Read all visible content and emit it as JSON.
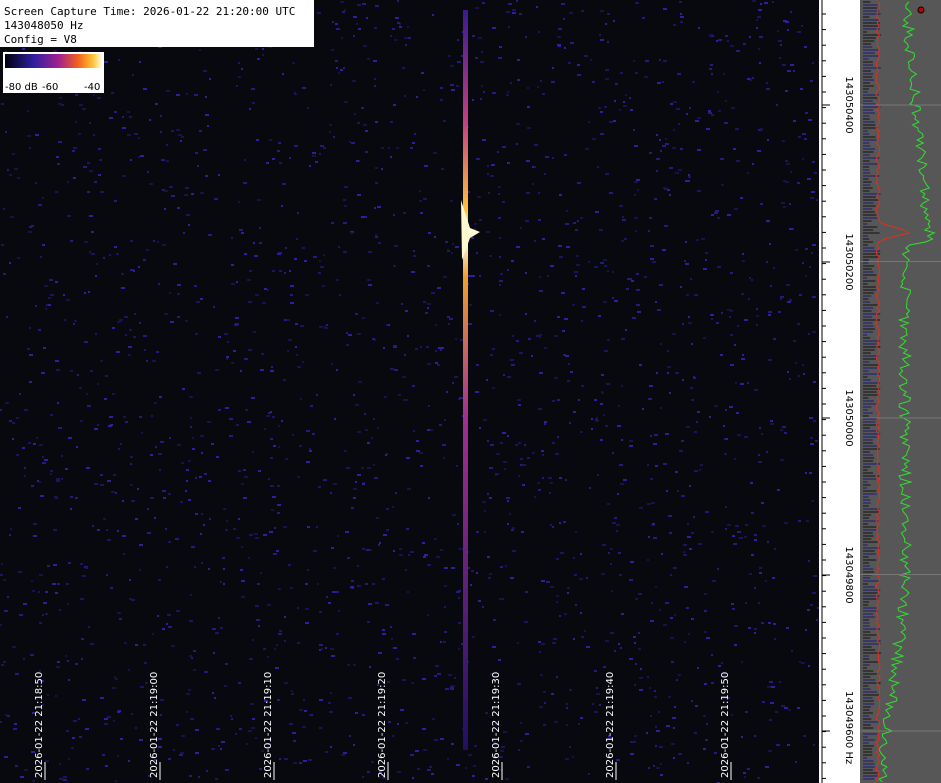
{
  "header": {
    "lines": [
      "Screen Capture Time: 2026-01-22 21:20:00 UTC",
      "143048050 Hz",
      "Config = V8"
    ]
  },
  "colorbar": {
    "labels": [
      "-80 dB",
      "-60",
      "-40"
    ]
  },
  "time_labels": [
    "2026-01-22 21:18:50",
    "2026-01-22 21:19:00",
    "2026-01-22 21:19:10",
    "2026-01-22 21:19:20",
    "2026-01-22 21:19:30",
    "2026-01-22 21:19:40",
    "2026-01-22 21:19:50"
  ],
  "freq_labels": [
    "143050400",
    "143050200",
    "143050000",
    "143049800",
    "143049600 Hz"
  ]
}
